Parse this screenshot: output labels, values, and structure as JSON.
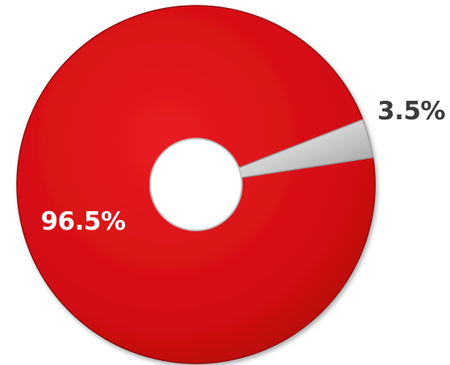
{
  "chart_data": {
    "type": "pie",
    "variant": "donut",
    "title": "",
    "slices": [
      {
        "label": "96.5%",
        "value": 96.5,
        "color": "#d40d12"
      },
      {
        "label": "3.5%",
        "value": 3.5,
        "color": "#c9c9c9"
      }
    ],
    "legend": "none"
  }
}
